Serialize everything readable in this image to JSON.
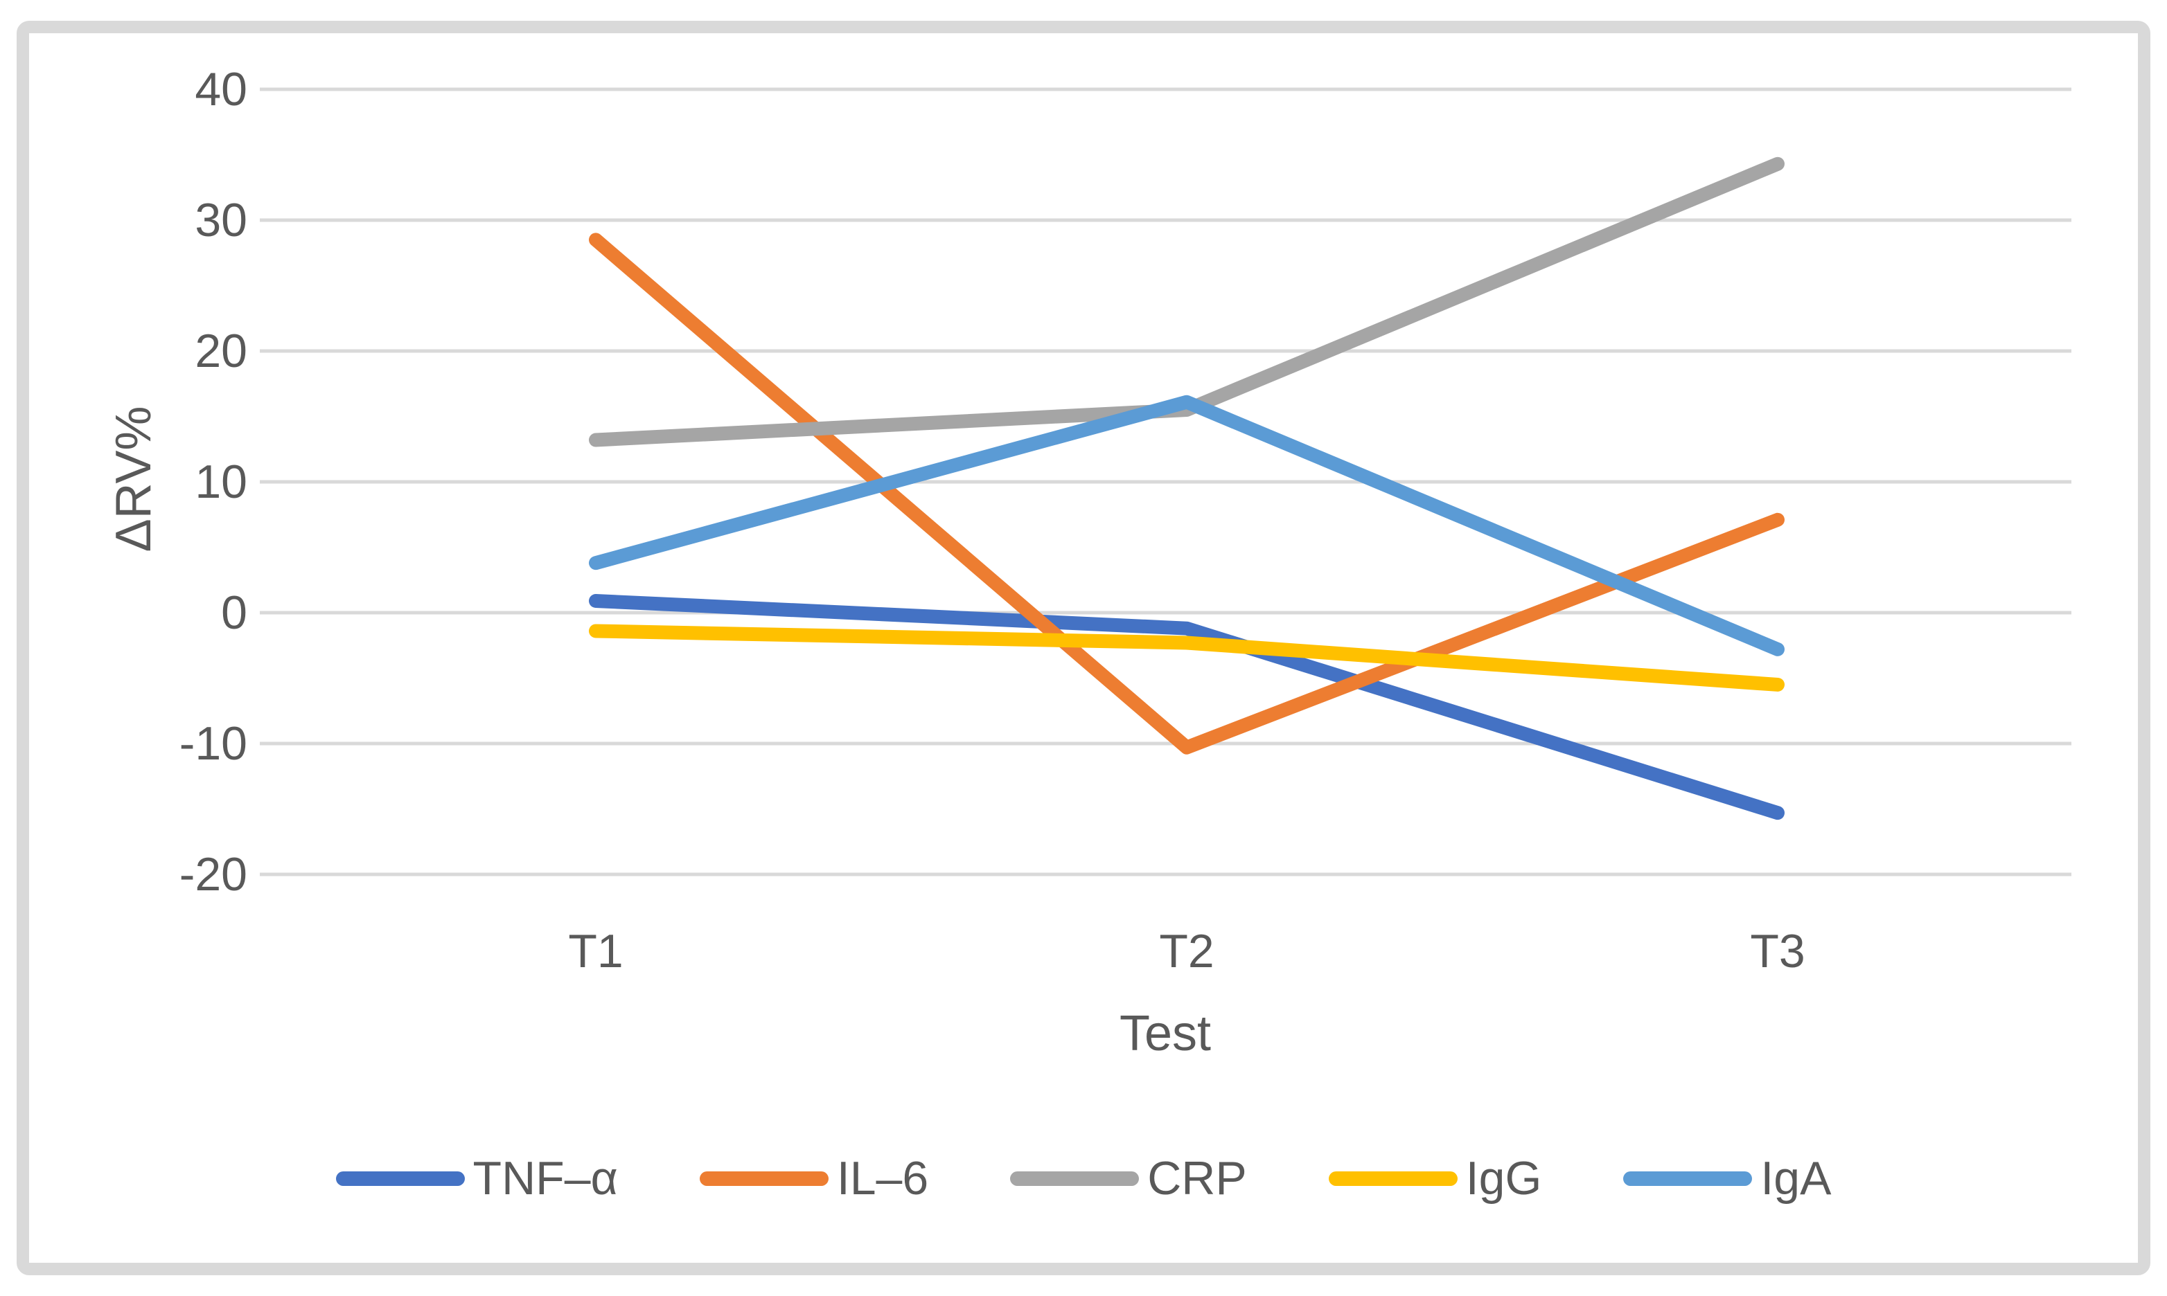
{
  "chart_data": {
    "type": "line",
    "title": "",
    "categories": [
      "T1",
      "T2",
      "T3"
    ],
    "series": [
      {
        "name": "TNF–α",
        "color": "#4472C4",
        "values": [
          0.9,
          -1.2,
          -15.3
        ]
      },
      {
        "name": "IL–6",
        "color": "#ED7D31",
        "values": [
          28.5,
          -10.3,
          7.1
        ]
      },
      {
        "name": "CRP",
        "color": "#A5A5A5",
        "values": [
          13.2,
          15.5,
          34.3
        ]
      },
      {
        "name": "IgG",
        "color": "#FFC000",
        "values": [
          -1.4,
          -2.3,
          -5.5
        ]
      },
      {
        "name": "IgA",
        "color": "#5B9BD5",
        "values": [
          3.8,
          16.1,
          -2.8
        ]
      }
    ],
    "xlabel": "Test",
    "ylabel": "ΔRV%",
    "ylim": [
      -20,
      40
    ],
    "ytick_step": 10,
    "ytick_labels": [
      "40",
      "30",
      "20",
      "10",
      "0",
      "-10",
      "-20"
    ],
    "grid": "horizontal",
    "legend_position": "bottom"
  },
  "styles": {
    "text_color": "#595959",
    "grid_color": "#D9D9D9",
    "frame_color": "#D9D9D9",
    "background": "#FFFFFF"
  }
}
